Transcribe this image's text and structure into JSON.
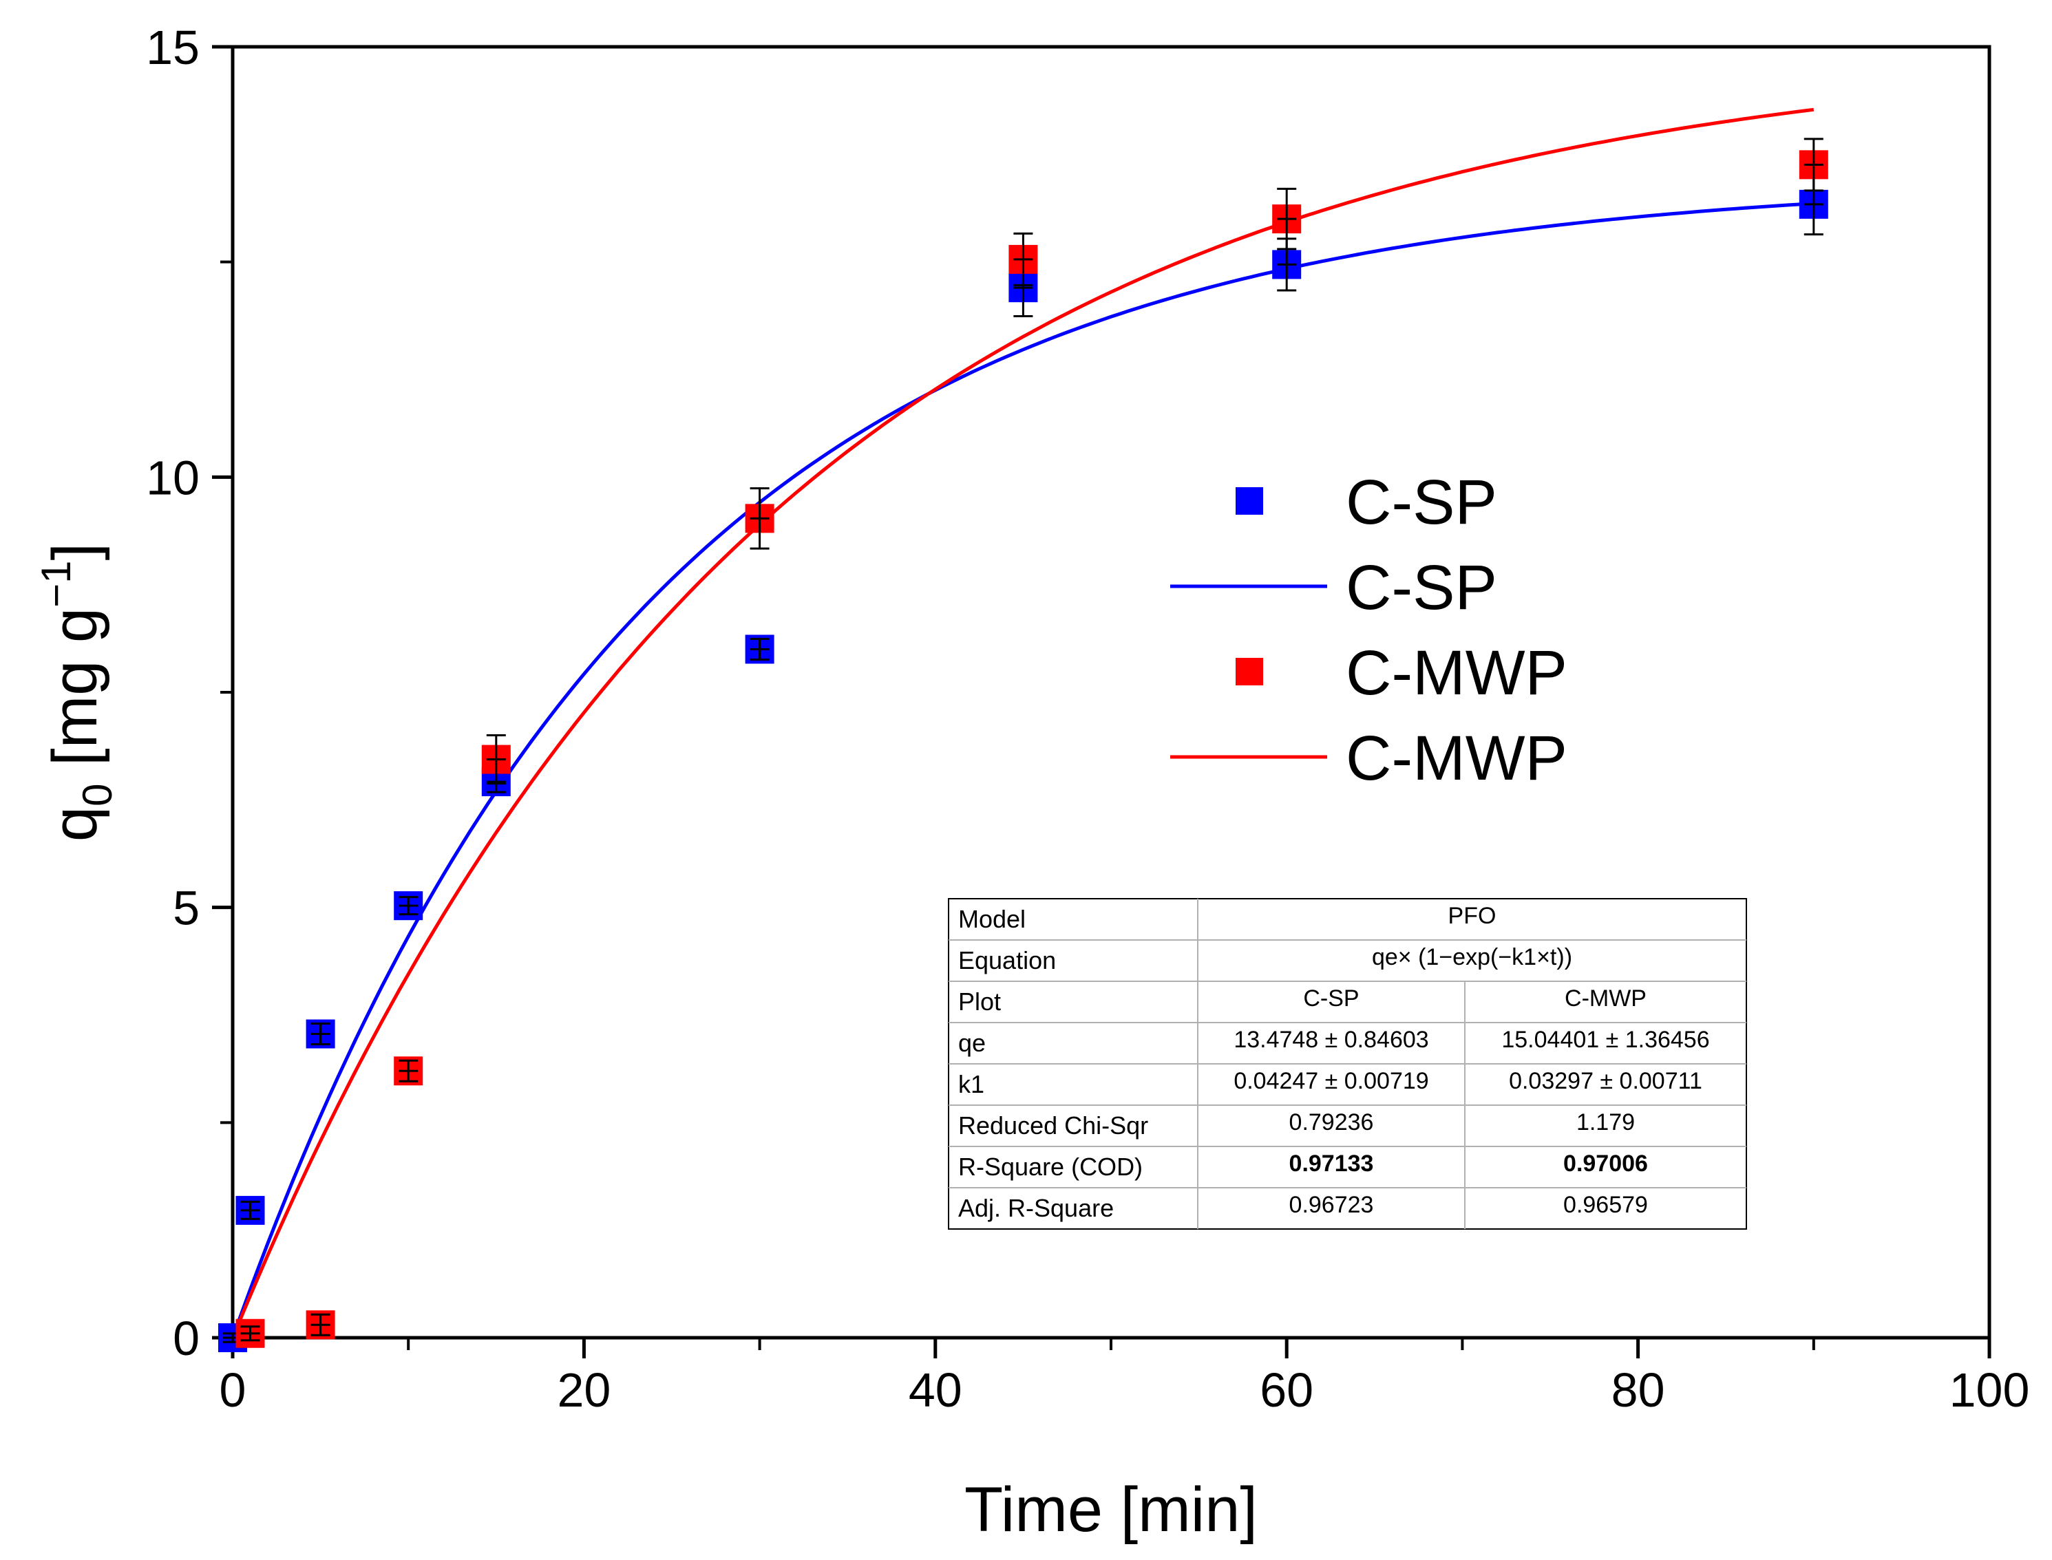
{
  "chart_data": {
    "type": "scatter",
    "xlabel": "Time [min]",
    "ylabel": {
      "base": "q",
      "sub": "0",
      "mid": " [mg g",
      "sup": "−1",
      "end": "]"
    },
    "xlim": [
      0,
      100
    ],
    "ylim": [
      0,
      15
    ],
    "x_ticks": [
      0,
      20,
      40,
      60,
      80,
      100
    ],
    "x_ticks_labels": [
      "0",
      "20",
      "40",
      "60",
      "80",
      "100"
    ],
    "x_minor_ticks": [
      10,
      30,
      50,
      70,
      90
    ],
    "y_ticks": [
      0,
      5,
      10,
      15
    ],
    "y_ticks_labels": [
      "0",
      "5",
      "10",
      "15"
    ],
    "y_minor_ticks": [
      2.5,
      7.5,
      12.5
    ],
    "grid": false,
    "legend_position": "center-right",
    "series": [
      {
        "name": "C-SP",
        "kind": "points",
        "color": "#0000ff",
        "x": [
          0,
          1,
          5,
          10,
          15,
          30,
          45,
          60,
          90
        ],
        "y": [
          0,
          1.48,
          3.53,
          5.02,
          6.46,
          8.0,
          12.2,
          12.47,
          13.17
        ],
        "err": [
          0.05,
          0.1,
          0.12,
          0.1,
          0.12,
          0.12,
          0.33,
          0.3,
          0.35
        ]
      },
      {
        "name": "C-SP",
        "kind": "fit",
        "color": "#0000ff",
        "model": {
          "qe": 13.4748,
          "k1": 0.04247,
          "x_range": [
            0,
            90
          ]
        }
      },
      {
        "name": "C-MWP",
        "kind": "points",
        "color": "#ff0000",
        "x": [
          1,
          5,
          10,
          15,
          30,
          45,
          60,
          90
        ],
        "y": [
          0.05,
          0.15,
          3.1,
          6.72,
          9.52,
          12.53,
          13.0,
          13.63
        ],
        "err": [
          0.08,
          0.12,
          0.12,
          0.28,
          0.35,
          0.3,
          0.35,
          0.3
        ]
      },
      {
        "name": "C-MWP",
        "kind": "fit",
        "color": "#ff0000",
        "model": {
          "qe": 15.04401,
          "k1": 0.03297,
          "x_range": [
            0,
            90
          ]
        }
      }
    ],
    "results_table": {
      "rows": [
        {
          "label": "Model",
          "values": [
            "PFO"
          ],
          "span": true
        },
        {
          "label": "Equation",
          "values": [
            "qe× (1−exp(−k1×t))"
          ],
          "span": true
        },
        {
          "label": "Plot",
          "values": [
            "C-SP",
            "C-MWP"
          ]
        },
        {
          "label": "qe",
          "values": [
            "13.4748 ± 0.84603",
            "15.04401 ± 1.36456"
          ]
        },
        {
          "label": "k1",
          "values": [
            "0.04247 ± 0.00719",
            "0.03297 ± 0.00711"
          ]
        },
        {
          "label": "Reduced Chi-Sqr",
          "values": [
            "0.79236",
            "1.179"
          ]
        },
        {
          "label": "R-Square (COD)",
          "values": [
            "0.97133",
            "0.97006"
          ],
          "bold": true
        },
        {
          "label": "Adj. R-Square",
          "values": [
            "0.96723",
            "0.96579"
          ]
        }
      ]
    }
  }
}
